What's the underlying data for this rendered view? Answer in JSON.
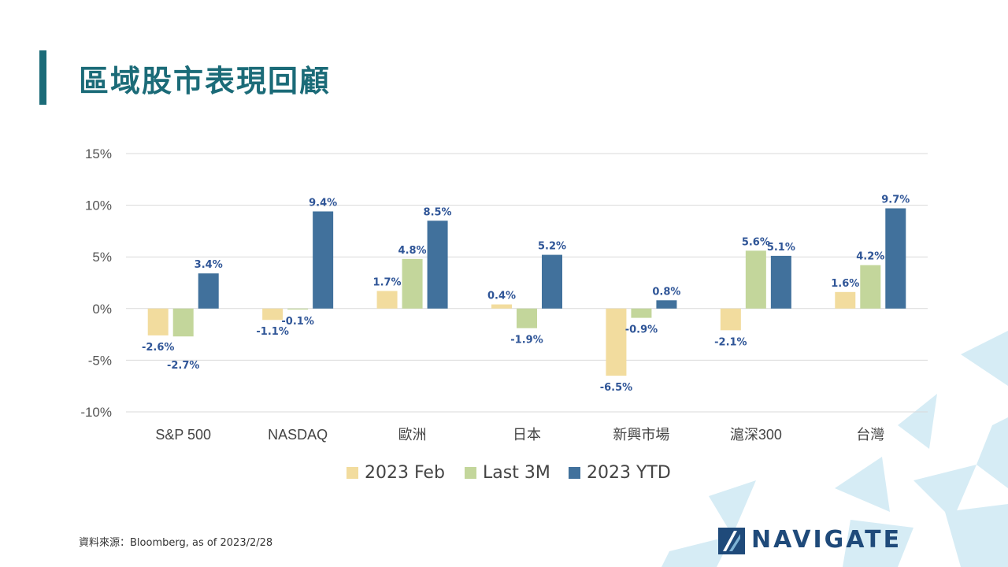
{
  "page": {
    "title": "區域股市表現回顧",
    "source": "資料來源：Bloomberg,  as of 2023/2/28",
    "logo_text": "NAVIGATE"
  },
  "colors": {
    "title": "#1b6b78",
    "feb": "#f2dc9e",
    "last3m": "#c3d69b",
    "ytd": "#41719c",
    "label": "#2f5597",
    "grid": "#d9d9d9",
    "deco": "#cfe8f3"
  },
  "chart_data": {
    "type": "bar",
    "title": "",
    "xlabel": "",
    "ylabel": "",
    "ylim": [
      -10,
      15
    ],
    "yticks": [
      -10,
      -5,
      0,
      5,
      10,
      15
    ],
    "ytick_labels": [
      "-10%",
      "-5%",
      "0%",
      "5%",
      "10%",
      "15%"
    ],
    "grid": true,
    "legend_position": "bottom",
    "categories": [
      "S&P 500",
      "NASDAQ",
      "歐洲",
      "日本",
      "新興市場",
      "滬深300",
      "台灣"
    ],
    "series": [
      {
        "name": "2023 Feb",
        "values": [
          -2.6,
          -1.1,
          1.7,
          0.4,
          -6.5,
          -2.1,
          1.6
        ],
        "labels": [
          "-2.6%",
          "-1.1%",
          "1.7%",
          "0.4%",
          "-6.5%",
          "-2.1%",
          "1.6%"
        ]
      },
      {
        "name": "Last 3M",
        "values": [
          -2.7,
          -0.1,
          4.8,
          -1.9,
          -0.9,
          5.6,
          4.2
        ],
        "labels": [
          "-2.7%",
          "-0.1%",
          "4.8%",
          "-1.9%",
          "-0.9%",
          "5.6%",
          "4.2%"
        ]
      },
      {
        "name": "2023 YTD",
        "values": [
          3.4,
          9.4,
          8.5,
          5.2,
          0.8,
          5.1,
          9.7
        ],
        "labels": [
          "3.4%",
          "9.4%",
          "8.5%",
          "5.2%",
          "0.8%",
          "5.1%",
          "9.7%"
        ]
      }
    ]
  }
}
